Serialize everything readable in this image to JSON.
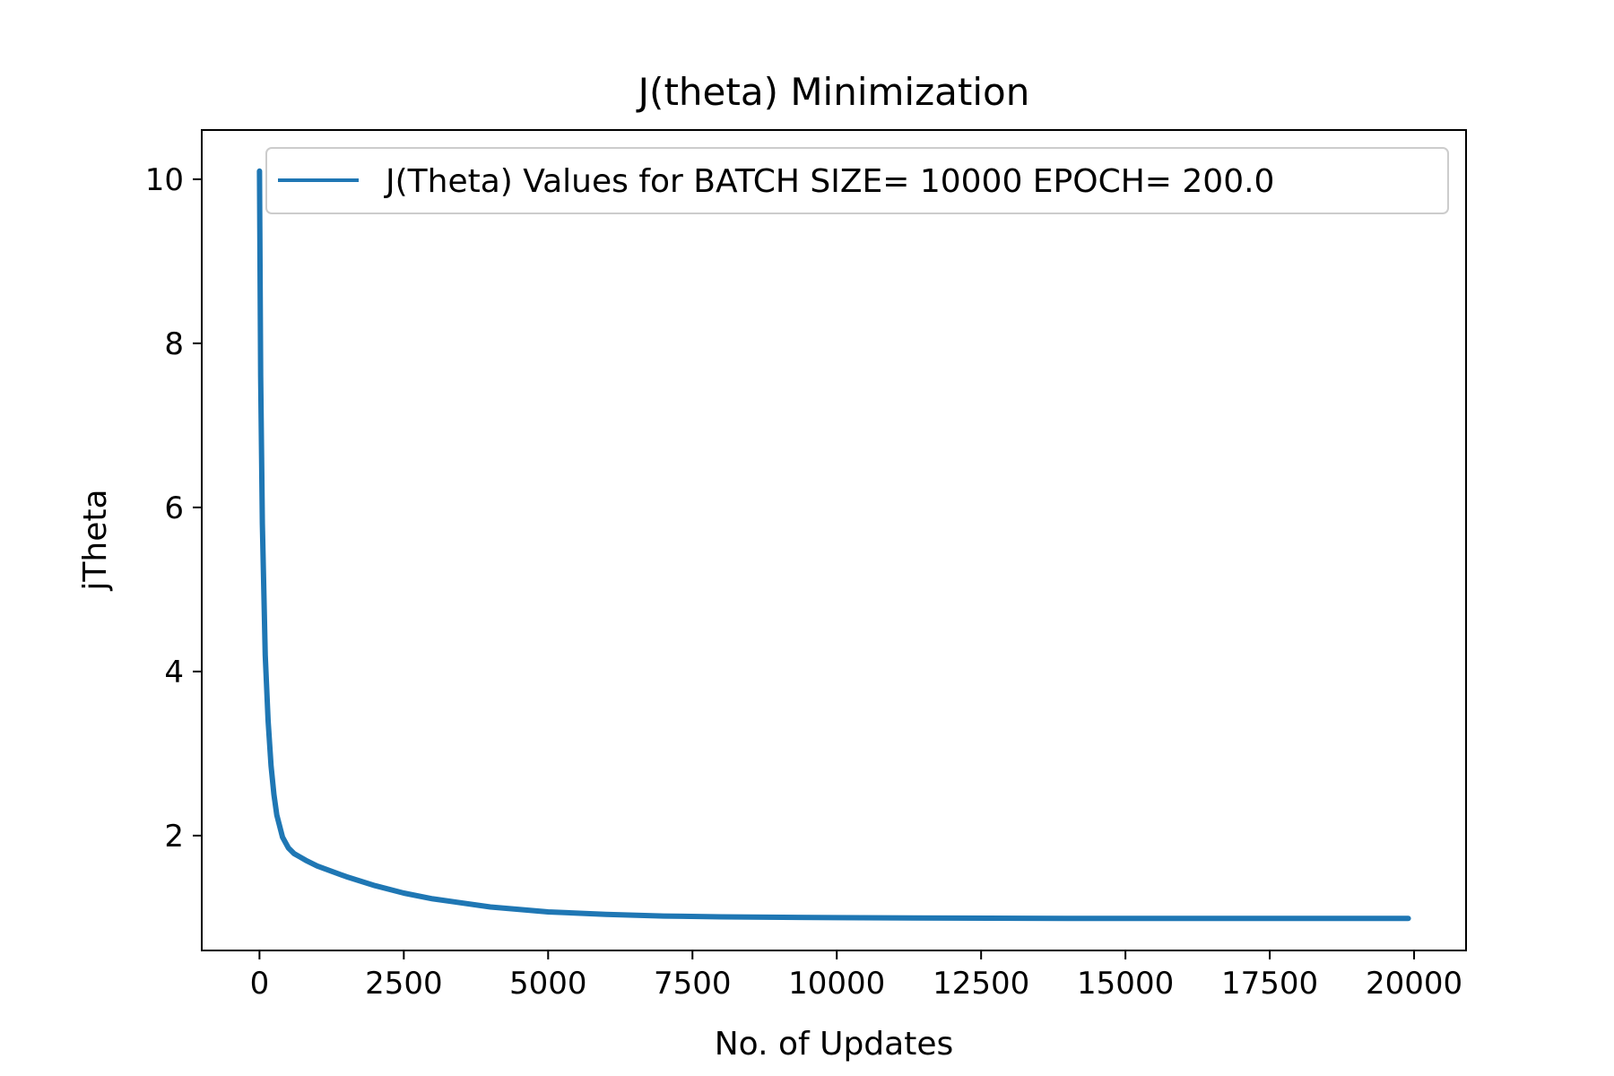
{
  "chart_data": {
    "type": "line",
    "title": "J(theta) Minimization",
    "xlabel": "No. of Updates",
    "ylabel": "jTheta",
    "xlim": [
      -1000,
      20900
    ],
    "ylim": [
      0.6,
      10.6
    ],
    "xticks": [
      0,
      2500,
      5000,
      7500,
      10000,
      12500,
      15000,
      17500,
      20000
    ],
    "yticks": [
      2,
      4,
      6,
      8,
      10
    ],
    "grid": false,
    "legend_position": "top-right",
    "series": [
      {
        "name": "J(Theta) Values for BATCH SIZE= 10000 EPOCH= 200.0",
        "color": "#1f77b4",
        "x": [
          0,
          20,
          50,
          100,
          150,
          200,
          250,
          300,
          400,
          500,
          600,
          700,
          800,
          1000,
          1500,
          2000,
          2500,
          3000,
          4000,
          5000,
          6000,
          7000,
          8000,
          10000,
          12000,
          14000,
          16000,
          18000,
          19900
        ],
        "y": [
          10.1,
          7.6,
          5.8,
          4.2,
          3.4,
          2.85,
          2.5,
          2.25,
          1.98,
          1.85,
          1.78,
          1.74,
          1.7,
          1.63,
          1.5,
          1.39,
          1.3,
          1.23,
          1.13,
          1.07,
          1.04,
          1.02,
          1.01,
          1.0,
          0.995,
          0.99,
          0.99,
          0.99,
          0.99
        ]
      }
    ]
  }
}
